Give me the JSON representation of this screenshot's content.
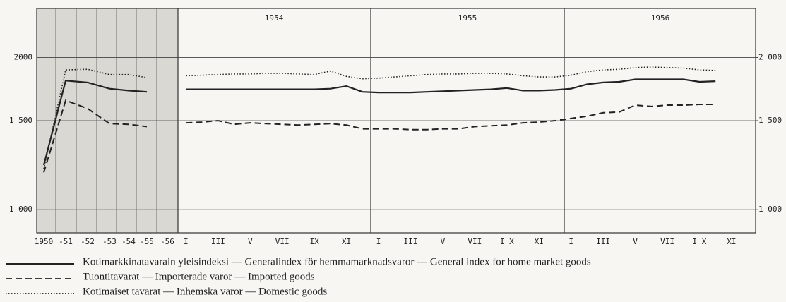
{
  "chart_data": {
    "type": "line",
    "log_scale": true,
    "grid": true,
    "categories": [
      "1950",
      "-51",
      "-52",
      "-53",
      "-54",
      "-55",
      "-56",
      "I",
      null,
      "III",
      null,
      "V",
      null,
      "VII",
      null,
      "IX",
      null,
      "XI",
      null,
      "I",
      null,
      "III",
      null,
      "V",
      null,
      "VII",
      null,
      "I X",
      null,
      "XI",
      null,
      "I",
      null,
      "III",
      null,
      "V",
      null,
      "VII",
      null,
      "I X",
      null,
      "XI",
      null
    ],
    "annotations": [
      "1954",
      "1955",
      "1956"
    ],
    "ylim": [
      900,
      2500
    ],
    "yticks": [
      {
        "value": 1000,
        "label": "1 000"
      },
      {
        "value": 1500,
        "label": "1 500"
      },
      2000
    ],
    "y2lim": [
      900,
      2500
    ],
    "y2ticks": [
      {
        "value": 1000,
        "label": "1 000"
      },
      {
        "value": 1500,
        "label": "1 500"
      },
      {
        "value": 2000,
        "label": "2 000"
      }
    ],
    "series": [
      {
        "name": "Kotimarkkinatavarain yleisindeksi — Generalindex för hemmamarknadsvaror — General index for home market goods",
        "color": "#222222",
        "line_style": "solid",
        "values": [
          1225,
          1800,
          1785,
          1735,
          1720,
          1710,
          null,
          1730,
          1730,
          1730,
          1730,
          1730,
          1730,
          1730,
          1730,
          1730,
          1735,
          1755,
          1710,
          1705,
          1705,
          1705,
          1710,
          1715,
          1720,
          1725,
          1730,
          1740,
          1720,
          1720,
          1725,
          1735,
          1770,
          1785,
          1790,
          1810,
          1810,
          1810,
          1810,
          1790,
          1795,
          null,
          null
        ]
      },
      {
        "name": "Tuontitavarat — Importerade varor — Imported goods",
        "color": "#222222",
        "line_style": "dashed",
        "values": [
          1185,
          1645,
          1585,
          1480,
          1475,
          1460,
          null,
          1485,
          1490,
          1500,
          1475,
          1485,
          1480,
          1475,
          1470,
          1475,
          1480,
          1470,
          1445,
          1445,
          1445,
          1440,
          1440,
          1445,
          1445,
          1460,
          1465,
          1470,
          1485,
          1490,
          1500,
          1515,
          1530,
          1555,
          1560,
          1610,
          1600,
          1610,
          1610,
          1615,
          1615,
          null,
          null
        ]
      },
      {
        "name": "Kotimaiset tavarat — Inhemska varor — Domestic goods",
        "color": "#222222",
        "line_style": "dotted",
        "values": [
          1205,
          1890,
          1895,
          1850,
          1850,
          1825,
          null,
          1840,
          1845,
          1850,
          1855,
          1855,
          1860,
          1860,
          1855,
          1850,
          1880,
          1835,
          1815,
          1820,
          1830,
          1840,
          1850,
          1855,
          1855,
          1860,
          1860,
          1855,
          1840,
          1830,
          1830,
          1845,
          1875,
          1890,
          1895,
          1910,
          1915,
          1910,
          1905,
          1890,
          1885,
          null,
          null
        ]
      }
    ]
  }
}
